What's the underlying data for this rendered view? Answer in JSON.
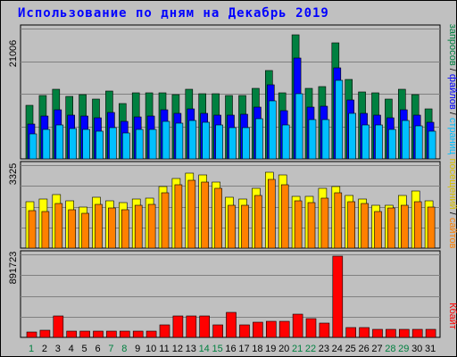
{
  "title": "Использование по дням на Декабрь 2019",
  "colors": {
    "hits": "#008040",
    "files": "#0000ff",
    "pages": "#00c0ff",
    "visits": "#ffff00",
    "sites": "#ff8000",
    "kbytes": "#ff0000",
    "weekend_day": "#008040",
    "weekday": "#000000",
    "panel_bg": "#c0c0c0",
    "grid": "#808080"
  },
  "legend": {
    "top": {
      "hits": "запросов",
      "files": "файлов",
      "pages": "страниц",
      "sep": " / "
    },
    "middle": {
      "visits": "посещений",
      "sites": "сайтов",
      "sep": " / "
    },
    "bottom": {
      "kbytes": "Кбайт"
    }
  },
  "chart_data": [
    {
      "type": "bar",
      "name": "hits-files-pages",
      "categories": [
        "1",
        "2",
        "3",
        "4",
        "5",
        "6",
        "7",
        "8",
        "9",
        "10",
        "11",
        "12",
        "13",
        "14",
        "15",
        "16",
        "17",
        "18",
        "19",
        "20",
        "21",
        "22",
        "23",
        "24",
        "25",
        "26",
        "27",
        "28",
        "29",
        "30",
        "31"
      ],
      "weekend_days": [
        "1",
        "7",
        "8",
        "14",
        "15",
        "21",
        "22",
        "28",
        "29"
      ],
      "ymax_label": "21006",
      "ylim": [
        0,
        21006
      ],
      "series": [
        {
          "name": "запросов",
          "values": [
            8600,
            10200,
            11200,
            10100,
            10400,
            9700,
            11000,
            8900,
            10600,
            10600,
            10600,
            10400,
            11200,
            10500,
            10500,
            10200,
            10200,
            11400,
            14200,
            10700,
            20000,
            11300,
            11600,
            18700,
            12800,
            10800,
            10600,
            9700,
            11200,
            10400,
            8100
          ]
        },
        {
          "name": "файлов",
          "values": [
            5600,
            6900,
            7900,
            7000,
            6900,
            6600,
            7500,
            6000,
            6700,
            6900,
            7900,
            7400,
            8000,
            7300,
            7100,
            7100,
            7200,
            8400,
            11900,
            7800,
            16200,
            8300,
            8500,
            14700,
            9500,
            7300,
            7100,
            6600,
            7900,
            7000,
            5900
          ]
        },
        {
          "name": "страниц",
          "values": [
            4100,
            4800,
            5400,
            4900,
            4700,
            4400,
            5000,
            4200,
            4800,
            4800,
            6000,
            5800,
            6200,
            5900,
            5500,
            5100,
            5000,
            6500,
            9400,
            5400,
            10500,
            6400,
            6300,
            12600,
            7400,
            5500,
            5400,
            4800,
            6200,
            5300,
            4400
          ]
        }
      ]
    },
    {
      "type": "bar",
      "name": "visits-sites",
      "categories": [
        "1",
        "2",
        "3",
        "4",
        "5",
        "6",
        "7",
        "8",
        "9",
        "10",
        "11",
        "12",
        "13",
        "14",
        "15",
        "16",
        "17",
        "18",
        "19",
        "20",
        "21",
        "22",
        "23",
        "24",
        "25",
        "26",
        "27",
        "28",
        "29",
        "30",
        "31"
      ],
      "ymax_label": "3325",
      "ylim": [
        0,
        3325
      ],
      "series": [
        {
          "name": "посещений",
          "values": [
            1850,
            1950,
            2150,
            1900,
            1650,
            2050,
            1900,
            1820,
            1950,
            2000,
            2450,
            2800,
            3000,
            2930,
            2650,
            2030,
            1950,
            2400,
            3050,
            2930,
            2080,
            2080,
            2380,
            2480,
            2100,
            1950,
            1700,
            1700,
            2100,
            2300,
            1900
          ]
        },
        {
          "name": "сайтов",
          "values": [
            1500,
            1450,
            1800,
            1550,
            1400,
            1750,
            1600,
            1550,
            1700,
            1750,
            2200,
            2550,
            2700,
            2650,
            2400,
            1700,
            1700,
            2120,
            2750,
            2550,
            1900,
            1820,
            2000,
            2200,
            1850,
            1800,
            1450,
            1600,
            1700,
            1850,
            1650
          ]
        }
      ]
    },
    {
      "type": "bar",
      "name": "kbytes",
      "categories": [
        "1",
        "2",
        "3",
        "4",
        "5",
        "6",
        "7",
        "8",
        "9",
        "10",
        "11",
        "12",
        "13",
        "14",
        "15",
        "16",
        "17",
        "18",
        "19",
        "20",
        "21",
        "22",
        "23",
        "24",
        "25",
        "26",
        "27",
        "28",
        "29",
        "30",
        "31"
      ],
      "ymax_label": "891723",
      "ylim": [
        0,
        891723
      ],
      "series": [
        {
          "name": "Кбайт",
          "values": [
            60000,
            75000,
            230000,
            70000,
            70000,
            70000,
            70000,
            70000,
            70000,
            70000,
            130000,
            230000,
            230000,
            230000,
            130000,
            270000,
            130000,
            160000,
            170000,
            170000,
            250000,
            200000,
            150000,
            870000,
            110000,
            110000,
            90000,
            90000,
            90000,
            90000,
            90000
          ]
        }
      ]
    }
  ]
}
